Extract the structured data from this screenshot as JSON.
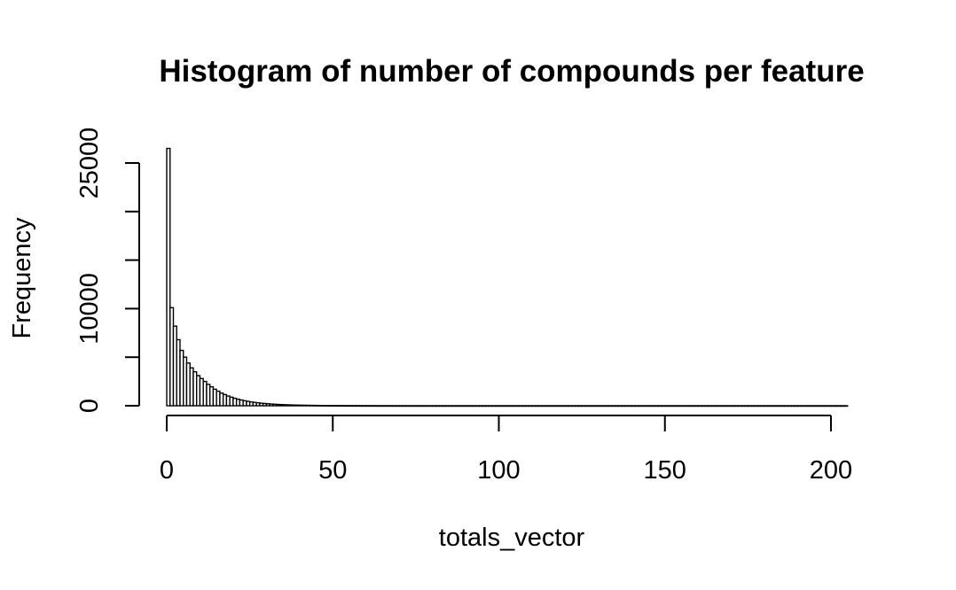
{
  "chart_data": {
    "type": "bar",
    "title": "Histogram of number of compounds per feature",
    "xlabel": "totals_vector",
    "ylabel": "Frequency",
    "xlim": [
      0,
      208
    ],
    "ylim": [
      0,
      25000
    ],
    "x_ticks": [
      0,
      50,
      100,
      150,
      200
    ],
    "x_tick_labels": [
      "0",
      "50",
      "100",
      "150",
      "200"
    ],
    "y_ticks": [
      0,
      5000,
      10000,
      15000,
      20000,
      25000
    ],
    "y_tick_labels": [
      "0",
      "",
      "10000",
      "",
      "",
      "25000"
    ],
    "bin_width": 1,
    "bin_start": 0,
    "values": [
      26500,
      10100,
      8200,
      6800,
      5700,
      5000,
      4400,
      3900,
      3500,
      3100,
      2800,
      2500,
      2200,
      1950,
      1700,
      1500,
      1300,
      1150,
      1000,
      880,
      770,
      670,
      590,
      510,
      450,
      390,
      340,
      300,
      260,
      230,
      200,
      175,
      155,
      135,
      120,
      105,
      92,
      82,
      72,
      64,
      56,
      50,
      44,
      39,
      35,
      31,
      28,
      25,
      22,
      20,
      18,
      16,
      14,
      13,
      12,
      11,
      10,
      9,
      8,
      7,
      7,
      6,
      6,
      5,
      5,
      4,
      4,
      4,
      3,
      3,
      3,
      3,
      2,
      2,
      2,
      2,
      2,
      2,
      1,
      1,
      1,
      1,
      1,
      1,
      1,
      1,
      1,
      1,
      1,
      1,
      1,
      1,
      1,
      1,
      1,
      1,
      1,
      1,
      1,
      1,
      1,
      1,
      1,
      1,
      1,
      1,
      1,
      1,
      1,
      1,
      1,
      1,
      1,
      1,
      1,
      1,
      1,
      1,
      1,
      1,
      1,
      1,
      1,
      1,
      1,
      1,
      1,
      1,
      1,
      1,
      1,
      1,
      1,
      1,
      1,
      1,
      1,
      1,
      1,
      1,
      1,
      1,
      1,
      1,
      1,
      1,
      1,
      1,
      1,
      1,
      1,
      1,
      1,
      1,
      1,
      1,
      1,
      1,
      1,
      1,
      1,
      1,
      1,
      1,
      1,
      1,
      1,
      1,
      1,
      1,
      1,
      1,
      1,
      1,
      1,
      1,
      1,
      1,
      1,
      1,
      1,
      1,
      1,
      1,
      1,
      1,
      1,
      1,
      1,
      1,
      1,
      1,
      1,
      1,
      1,
      1,
      1,
      1,
      1,
      1,
      1,
      1,
      1,
      1,
      1
    ],
    "grid": false,
    "legend": "none"
  }
}
